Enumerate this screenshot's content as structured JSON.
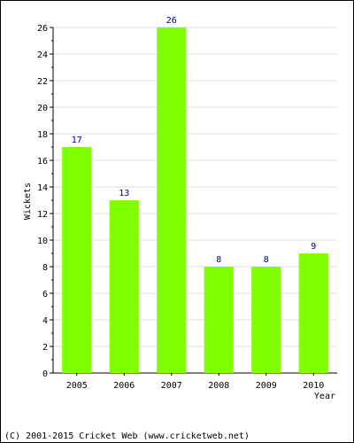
{
  "chart_data": {
    "type": "bar",
    "categories": [
      "2005",
      "2006",
      "2007",
      "2008",
      "2009",
      "2010"
    ],
    "values": [
      17,
      13,
      26,
      8,
      8,
      9
    ],
    "xlabel": "Year",
    "ylabel": "Wickets",
    "ylim": [
      0,
      26
    ],
    "yticks": [
      0,
      2,
      4,
      6,
      8,
      10,
      12,
      14,
      16,
      18,
      20,
      22,
      24,
      26
    ],
    "grid": true,
    "bar_color": "#80ff00",
    "label_color": "#000080",
    "grid_color": "#dddddd"
  },
  "footer": {
    "copyright": "(C) 2001-2015 Cricket Web (www.cricketweb.net)"
  }
}
